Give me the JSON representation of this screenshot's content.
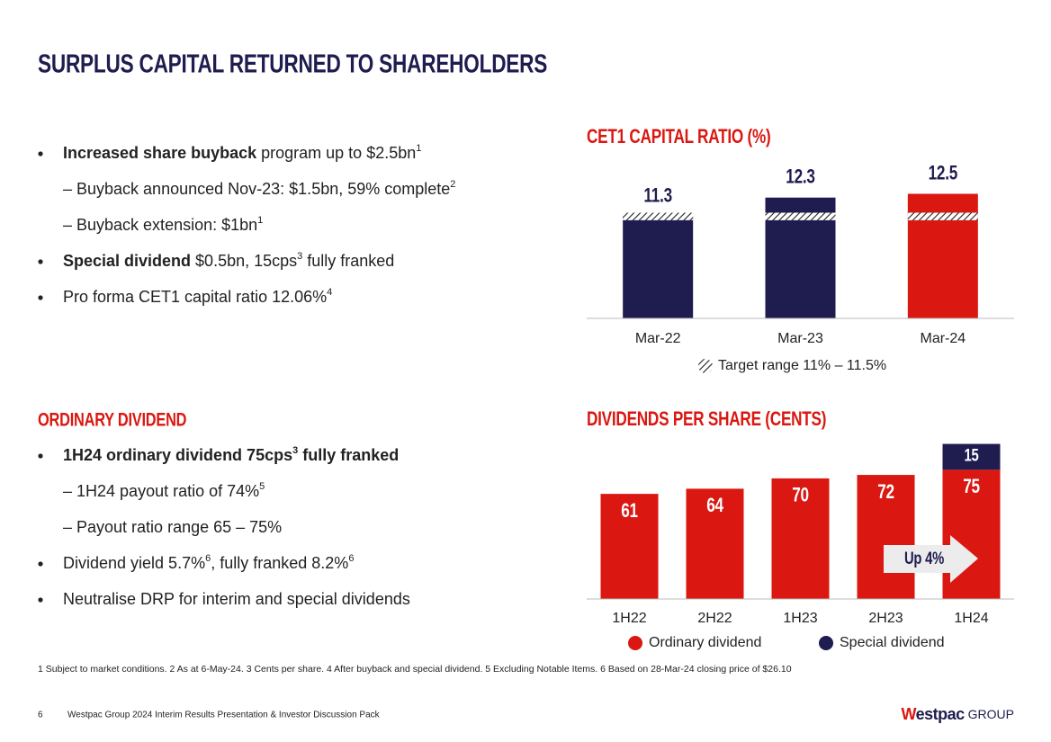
{
  "title": "SURPLUS CAPITAL RETURNED TO SHAREHOLDERS",
  "capital_bullets": [
    {
      "level": 1,
      "segments": [
        [
          "b",
          "Increased share buyback"
        ],
        [
          "n",
          " program up to $2.5bn"
        ],
        [
          "s",
          "1"
        ]
      ]
    },
    {
      "level": 2,
      "segments": [
        [
          "n",
          "– Buyback announced Nov-23: $1.5bn, 59% complete"
        ],
        [
          "s",
          "2"
        ]
      ]
    },
    {
      "level": 2,
      "segments": [
        [
          "n",
          "– Buyback extension: $1bn"
        ],
        [
          "s",
          "1"
        ]
      ]
    },
    {
      "level": 1,
      "segments": [
        [
          "b",
          "Special dividend"
        ],
        [
          "n",
          " $0.5bn, 15cps"
        ],
        [
          "s",
          "3"
        ],
        [
          "n",
          " fully franked"
        ]
      ]
    },
    {
      "level": 1,
      "segments": [
        [
          "n",
          "Pro forma CET1 capital ratio 12.06%"
        ],
        [
          "s",
          "4"
        ]
      ]
    }
  ],
  "dividend_heading": "ORDINARY DIVIDEND",
  "dividend_bullets": [
    {
      "level": 1,
      "segments": [
        [
          "b",
          "1H24 ordinary dividend 75cps"
        ],
        [
          "bs",
          "3"
        ],
        [
          "b",
          " fully franked"
        ]
      ]
    },
    {
      "level": 2,
      "segments": [
        [
          "n",
          "– 1H24 payout ratio of 74%"
        ],
        [
          "s",
          "5"
        ]
      ]
    },
    {
      "level": 2,
      "segments": [
        [
          "n",
          "– Payout ratio range 65 – 75%"
        ]
      ]
    },
    {
      "level": 1,
      "segments": [
        [
          "n",
          "Dividend yield 5.7%"
        ],
        [
          "s",
          "6"
        ],
        [
          "n",
          ", fully franked 8.2%"
        ],
        [
          "s",
          "6"
        ]
      ]
    },
    {
      "level": 1,
      "segments": [
        [
          "n",
          "Neutralise DRP for interim and special dividends"
        ]
      ]
    }
  ],
  "chart_data": [
    {
      "type": "bar",
      "title": "CET1 CAPITAL RATIO (%)",
      "categories": [
        "Mar-22",
        "Mar-23",
        "Mar-24"
      ],
      "values": [
        11.3,
        12.3,
        12.5
      ],
      "colors": [
        "#1f1c4f",
        "#1f1c4f",
        "#da1710"
      ],
      "ylim": [
        5.9,
        13.0
      ],
      "target_range": [
        11,
        11.5
      ],
      "target_label": "Target range 11% – 11.5%"
    },
    {
      "type": "stacked_bar",
      "title": "DIVIDENDS PER SHARE (CENTS)",
      "categories": [
        "1H22",
        "2H22",
        "1H23",
        "2H23",
        "1H24"
      ],
      "series": [
        {
          "name": "Ordinary dividend",
          "color": "#da1710",
          "values": [
            61,
            64,
            70,
            72,
            75
          ]
        },
        {
          "name": "Special dividend",
          "color": "#1f1c4f",
          "values": [
            null,
            null,
            null,
            null,
            15
          ]
        }
      ],
      "ylim": [
        0,
        95
      ],
      "annotation": "Up 4%"
    }
  ],
  "footnote": "1 Subject to market conditions. 2 As at 6-May-24. 3 Cents per share. 4 After buyback and special dividend. 5 Excluding Notable Items. 6 Based on 28-Mar-24 closing price of $26.10",
  "footer": {
    "page": "6",
    "text": "Westpac Group 2024 Interim Results Presentation & Investor Discussion Pack",
    "brand": "Westpac",
    "group": "GROUP"
  }
}
